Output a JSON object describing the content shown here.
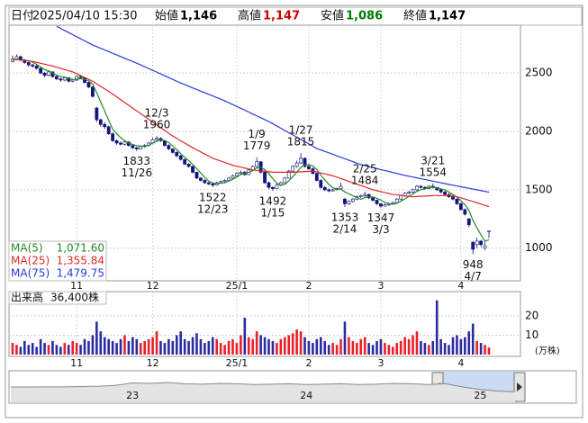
{
  "quote": {
    "date_label": "日付",
    "date": "2025/04/10 15:30",
    "fields": [
      {
        "name": "始値",
        "value": "1,146",
        "color": "#000000"
      },
      {
        "name": "高値",
        "value": "1,147",
        "color": "#d00000"
      },
      {
        "name": "安値",
        "value": "1,086",
        "color": "#007a00"
      },
      {
        "name": "終値",
        "value": "1,147",
        "color": "#000000"
      }
    ]
  },
  "chart_data": {
    "type": "candlestick",
    "categories": [
      null,
      null,
      null,
      null,
      null,
      null,
      null,
      null,
      null,
      null,
      null,
      null,
      null,
      null,
      null,
      null,
      "11",
      null,
      null,
      null,
      null,
      null,
      null,
      null,
      null,
      null,
      null,
      null,
      null,
      null,
      null,
      null,
      null,
      null,
      null,
      "12",
      null,
      null,
      null,
      null,
      null,
      null,
      null,
      null,
      null,
      null,
      null,
      null,
      null,
      null,
      null,
      null,
      null,
      null,
      null,
      null,
      "25/1",
      null,
      null,
      null,
      null,
      null,
      null,
      null,
      null,
      null,
      null,
      null,
      null,
      null,
      null,
      null,
      null,
      null,
      "2",
      null,
      null,
      null,
      null,
      null,
      null,
      null,
      null,
      null,
      null,
      null,
      null,
      null,
      null,
      null,
      null,
      null,
      "3",
      null,
      null,
      null,
      null,
      null,
      null,
      null,
      null,
      null,
      null,
      null,
      null,
      null,
      null,
      null,
      null,
      null,
      null,
      null,
      "4",
      null,
      null,
      null,
      null,
      null,
      null,
      null
    ],
    "open": [
      2600,
      2620,
      2640,
      2610,
      2590,
      2570,
      2560,
      2540,
      2500,
      2480,
      2510,
      2470,
      2450,
      2440,
      2460,
      2430,
      2440,
      2470,
      2460,
      2420,
      2380,
      2200,
      2100,
      2060,
      2040,
      1980,
      1920,
      1900,
      1890,
      1910,
      1880,
      1860,
      1850,
      1870,
      1880,
      1900,
      1930,
      1940,
      1920,
      1880,
      1850,
      1820,
      1790,
      1760,
      1720,
      1700,
      1650,
      1600,
      1580,
      1560,
      1550,
      1540,
      1560,
      1570,
      1580,
      1600,
      1620,
      1640,
      1650,
      1630,
      1670,
      1700,
      1740,
      1650,
      1560,
      1520,
      1510,
      1540,
      1560,
      1600,
      1660,
      1700,
      1730,
      1770,
      1700,
      1680,
      1640,
      1580,
      1520,
      1500,
      1490,
      1500,
      1510,
      1420,
      1380,
      1400,
      1420,
      1440,
      1450,
      1460,
      1430,
      1410,
      1380,
      1360,
      1370,
      1380,
      1390,
      1420,
      1450,
      1470,
      1480,
      1500,
      1530,
      1520,
      1510,
      1530,
      1520,
      1500,
      1480,
      1460,
      1440,
      1420,
      1380,
      1330,
      1250,
      1050,
      1030,
      1060,
      1000,
      1146
    ],
    "high": [
      2650,
      2660,
      2650,
      2620,
      2600,
      2580,
      2570,
      2550,
      2510,
      2520,
      2515,
      2480,
      2460,
      2470,
      2465,
      2450,
      2480,
      2485,
      2465,
      2425,
      2390,
      2210,
      2110,
      2080,
      2050,
      1990,
      1930,
      1915,
      1920,
      1915,
      1890,
      1870,
      1880,
      1890,
      1910,
      1945,
      1960,
      1950,
      1925,
      1890,
      1855,
      1830,
      1800,
      1765,
      1730,
      1705,
      1655,
      1610,
      1590,
      1570,
      1560,
      1570,
      1580,
      1590,
      1610,
      1630,
      1650,
      1665,
      1660,
      1680,
      1710,
      1779,
      1745,
      1655,
      1570,
      1530,
      1550,
      1570,
      1610,
      1670,
      1710,
      1750,
      1815,
      1775,
      1710,
      1690,
      1645,
      1590,
      1530,
      1510,
      1510,
      1520,
      1560,
      1430,
      1410,
      1430,
      1450,
      1460,
      1484,
      1465,
      1435,
      1415,
      1385,
      1380,
      1390,
      1400,
      1430,
      1460,
      1480,
      1490,
      1510,
      1540,
      1540,
      1530,
      1540,
      1554,
      1525,
      1505,
      1490,
      1470,
      1450,
      1425,
      1390,
      1340,
      1260,
      1060,
      1090,
      1070,
      1060,
      1147
    ],
    "low": [
      2590,
      2610,
      2600,
      2580,
      2555,
      2545,
      2530,
      2490,
      2465,
      2470,
      2460,
      2440,
      2425,
      2430,
      2420,
      2420,
      2430,
      2450,
      2410,
      2370,
      2290,
      2080,
      2040,
      2020,
      1970,
      1910,
      1885,
      1880,
      1880,
      1870,
      1850,
      1833,
      1845,
      1860,
      1870,
      1895,
      1920,
      1910,
      1870,
      1840,
      1810,
      1780,
      1750,
      1710,
      1690,
      1640,
      1590,
      1570,
      1550,
      1540,
      1522,
      1535,
      1550,
      1560,
      1575,
      1590,
      1610,
      1630,
      1620,
      1625,
      1660,
      1695,
      1640,
      1550,
      1505,
      1492,
      1505,
      1530,
      1555,
      1595,
      1650,
      1690,
      1720,
      1690,
      1670,
      1630,
      1570,
      1510,
      1490,
      1480,
      1485,
      1495,
      1505,
      1353,
      1370,
      1390,
      1410,
      1430,
      1440,
      1420,
      1400,
      1370,
      1347,
      1355,
      1360,
      1370,
      1385,
      1410,
      1440,
      1460,
      1470,
      1490,
      1510,
      1500,
      1505,
      1510,
      1490,
      1470,
      1450,
      1430,
      1410,
      1370,
      1320,
      1280,
      1180,
      948,
      1000,
      1010,
      980,
      1086
    ],
    "close": [
      2620,
      2640,
      2610,
      2590,
      2570,
      2560,
      2540,
      2500,
      2480,
      2510,
      2470,
      2450,
      2440,
      2460,
      2430,
      2440,
      2470,
      2460,
      2420,
      2380,
      2300,
      2100,
      2060,
      2040,
      1980,
      1920,
      1900,
      1890,
      1910,
      1880,
      1860,
      1850,
      1870,
      1880,
      1900,
      1930,
      1940,
      1920,
      1880,
      1850,
      1820,
      1790,
      1760,
      1720,
      1700,
      1650,
      1600,
      1580,
      1560,
      1550,
      1540,
      1560,
      1570,
      1580,
      1600,
      1620,
      1640,
      1650,
      1630,
      1670,
      1700,
      1740,
      1650,
      1560,
      1520,
      1510,
      1540,
      1560,
      1600,
      1660,
      1700,
      1730,
      1770,
      1700,
      1680,
      1640,
      1580,
      1520,
      1500,
      1490,
      1500,
      1510,
      1530,
      1380,
      1400,
      1420,
      1440,
      1450,
      1460,
      1430,
      1410,
      1380,
      1360,
      1370,
      1380,
      1390,
      1420,
      1450,
      1470,
      1480,
      1500,
      1530,
      1520,
      1510,
      1530,
      1520,
      1500,
      1480,
      1460,
      1440,
      1420,
      1380,
      1330,
      1290,
      1200,
      990,
      1060,
      1030,
      1020,
      1147
    ],
    "up_color": "#ffffff",
    "down_color": "#14148a",
    "edge_color": "#10106e",
    "ylim": [
      720,
      2910
    ],
    "yticks": [
      1000,
      1500,
      2000,
      2500
    ],
    "grid": true,
    "series": [
      {
        "name": "MA(5)",
        "color": "#238a23",
        "latest": "1,071.60",
        "values": [
          2610,
          2620,
          2615,
          2612,
          2606,
          2594,
          2574,
          2552,
          2530,
          2518,
          2500,
          2482,
          2470,
          2466,
          2454,
          2444,
          2448,
          2452,
          2446,
          2434,
          2406,
          2332,
          2252,
          2176,
          2096,
          2020,
          1980,
          1946,
          1920,
          1900,
          1888,
          1878,
          1874,
          1872,
          1880,
          1900,
          1916,
          1928,
          1922,
          1904,
          1876,
          1844,
          1810,
          1778,
          1750,
          1716,
          1680,
          1644,
          1606,
          1574,
          1558,
          1554,
          1556,
          1560,
          1574,
          1590,
          1610,
          1630,
          1642,
          1650,
          1664,
          1688,
          1690,
          1672,
          1638,
          1596,
          1556,
          1540,
          1546,
          1576,
          1612,
          1650,
          1692,
          1712,
          1716,
          1704,
          1674,
          1624,
          1584,
          1546,
          1518,
          1504,
          1506,
          1482,
          1464,
          1448,
          1434,
          1418,
          1434,
          1440,
          1438,
          1426,
          1412,
          1390,
          1380,
          1376,
          1384,
          1402,
          1422,
          1442,
          1464,
          1486,
          1500,
          1508,
          1518,
          1522,
          1516,
          1508,
          1498,
          1480,
          1460,
          1436,
          1406,
          1372,
          1324,
          1238,
          1174,
          1114,
          1060,
          1071.6
        ]
      },
      {
        "name": "MA(25)",
        "color": "#e02828",
        "latest": "1,355.84",
        "values": [
          2620,
          2616,
          2612,
          2608,
          2604,
          2600,
          2592,
          2584,
          2576,
          2568,
          2560,
          2550,
          2540,
          2530,
          2520,
          2510,
          2494,
          2478,
          2462,
          2446,
          2430,
          2408,
          2386,
          2364,
          2342,
          2320,
          2296,
          2272,
          2248,
          2224,
          2200,
          2176,
          2152,
          2128,
          2104,
          2080,
          2056,
          2032,
          2008,
          1984,
          1960,
          1940,
          1920,
          1900,
          1880,
          1860,
          1842,
          1824,
          1806,
          1788,
          1770,
          1758,
          1746,
          1734,
          1722,
          1710,
          1702,
          1694,
          1686,
          1678,
          1670,
          1666,
          1662,
          1658,
          1654,
          1650,
          1650,
          1650,
          1650,
          1650,
          1650,
          1652,
          1654,
          1656,
          1658,
          1660,
          1652,
          1644,
          1636,
          1628,
          1620,
          1608,
          1596,
          1584,
          1572,
          1560,
          1548,
          1536,
          1524,
          1512,
          1500,
          1492,
          1484,
          1476,
          1468,
          1460,
          1456,
          1452,
          1448,
          1444,
          1440,
          1442,
          1444,
          1446,
          1448,
          1450,
          1450,
          1450,
          1450,
          1450,
          1450,
          1440,
          1430,
          1420,
          1410,
          1400,
          1389,
          1378,
          1367,
          1355.84
        ]
      },
      {
        "name": "MA(75)",
        "color": "#2a3ae0",
        "latest": "1,479.75",
        "values": [
          null,
          null,
          null,
          null,
          null,
          null,
          null,
          null,
          null,
          null,
          null,
          2900,
          2882,
          2864,
          2847,
          2829,
          2811,
          2793,
          2776,
          2758,
          2740,
          2726,
          2712,
          2698,
          2684,
          2669,
          2655,
          2641,
          2627,
          2613,
          2599,
          2585,
          2570,
          2554,
          2539,
          2523,
          2508,
          2492,
          2477,
          2461,
          2446,
          2430,
          2415,
          2401,
          2387,
          2373,
          2359,
          2345,
          2332,
          2318,
          2304,
          2290,
          2276,
          2262,
          2246,
          2230,
          2214,
          2198,
          2182,
          2166,
          2149,
          2133,
          2117,
          2101,
          2085,
          2066,
          2047,
          2027,
          2008,
          1989,
          1970,
          1950,
          1931,
          1912,
          1893,
          1873,
          1854,
          1841,
          1829,
          1816,
          1804,
          1791,
          1778,
          1766,
          1753,
          1741,
          1728,
          1715,
          1707,
          1698,
          1690,
          1681,
          1673,
          1665,
          1657,
          1648,
          1640,
          1631,
          1623,
          1616,
          1609,
          1602,
          1595,
          1588,
          1581,
          1574,
          1567,
          1560,
          1553,
          1546,
          1539,
          1533,
          1526,
          1519,
          1513,
          1506,
          1499,
          1493,
          1486,
          1479.75
        ]
      }
    ],
    "annotations": [
      {
        "date": "12/3",
        "value": 1960,
        "index": 36,
        "kind": "high"
      },
      {
        "date": "11/26",
        "value": 1833,
        "index": 31,
        "kind": "low"
      },
      {
        "date": "12/23",
        "value": 1522,
        "index": 50,
        "kind": "low"
      },
      {
        "date": "1/9",
        "value": 1779,
        "index": 61,
        "kind": "high"
      },
      {
        "date": "1/15",
        "value": 1492,
        "index": 65,
        "kind": "low"
      },
      {
        "date": "1/27",
        "value": 1815,
        "index": 72,
        "kind": "high"
      },
      {
        "date": "2/14",
        "value": 1353,
        "index": 83,
        "kind": "low"
      },
      {
        "date": "2/25",
        "value": 1484,
        "index": 88,
        "kind": "high"
      },
      {
        "date": "3/3",
        "value": 1347,
        "index": 92,
        "kind": "low"
      },
      {
        "date": "3/21",
        "value": 1554,
        "index": 105,
        "kind": "high"
      },
      {
        "date": "4/7",
        "value": 948,
        "index": 115,
        "kind": "low"
      }
    ],
    "volume": {
      "title": "出来高",
      "latest": "36,400株",
      "unit_label": "(万株)",
      "up_color": "#e8202a",
      "down_color": "#2b2ba0",
      "ylim": [
        0,
        32.5
      ],
      "yticks": [
        10,
        20
      ],
      "values": [
        6,
        5,
        4,
        7,
        5,
        6,
        4,
        8,
        6,
        5,
        7,
        5,
        4,
        6,
        5,
        7,
        6,
        5,
        8,
        7,
        10,
        17,
        12,
        9,
        8,
        7,
        6,
        8,
        10,
        7,
        9,
        8,
        6,
        7,
        8,
        9,
        12,
        7,
        6,
        8,
        7,
        10,
        12,
        8,
        7,
        9,
        11,
        8,
        6,
        7,
        9,
        8,
        6,
        5,
        7,
        8,
        6,
        10,
        19,
        9,
        8,
        12,
        10,
        9,
        8,
        7,
        6,
        8,
        9,
        10,
        11,
        13,
        12,
        9,
        7,
        6,
        8,
        9,
        7,
        5,
        6,
        5,
        8,
        17,
        9,
        7,
        6,
        8,
        9,
        6,
        5,
        7,
        8,
        6,
        5,
        4,
        6,
        7,
        9,
        8,
        10,
        12,
        7,
        6,
        5,
        7,
        28,
        8,
        6,
        5,
        9,
        10,
        8,
        9,
        12,
        16,
        7,
        6,
        5,
        3.64
      ]
    },
    "navigator": {
      "ylim": [
        0,
        4000
      ],
      "categories": [
        null,
        null,
        null,
        null,
        null,
        null,
        null,
        "23",
        null,
        null,
        null,
        null,
        null,
        null,
        null,
        null,
        null,
        "24",
        null,
        null,
        null,
        null,
        null,
        null,
        null,
        null,
        null,
        "25",
        null,
        null
      ],
      "values": [
        2000,
        2000,
        2010,
        2020,
        2050,
        2100,
        2200,
        2500,
        2450,
        2550,
        2400,
        2350,
        2450,
        2400,
        2300,
        2350,
        2400,
        2300,
        2350,
        2400,
        2300,
        2350,
        2450,
        2400,
        2300,
        2400,
        2000,
        1700,
        1500,
        1400
      ]
    }
  }
}
